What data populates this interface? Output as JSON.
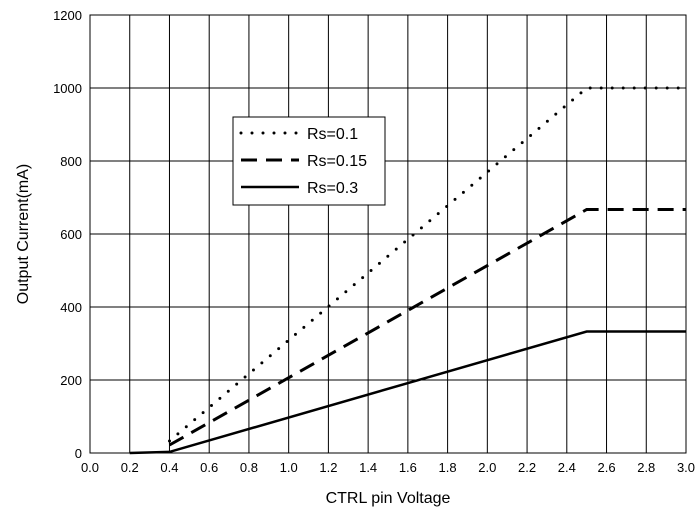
{
  "chart_data": {
    "type": "line",
    "title": "",
    "xlabel": "CTRL pin Voltage",
    "ylabel": "Output Current(mA)",
    "xlim": [
      0.0,
      3.0
    ],
    "ylim": [
      0,
      1200
    ],
    "x_ticks": [
      "0.0",
      "0.2",
      "0.4",
      "0.6",
      "0.8",
      "1.0",
      "1.2",
      "1.4",
      "1.6",
      "1.8",
      "2.0",
      "2.2",
      "2.4",
      "2.6",
      "2.8",
      "3.0"
    ],
    "y_ticks": [
      "0",
      "200",
      "400",
      "600",
      "800",
      "1000",
      "1200"
    ],
    "grid": true,
    "legend_position": "upper-left-center",
    "series": [
      {
        "name": "Rs=0.1",
        "style": "dotted",
        "color": "#000000",
        "x": [
          0.4,
          2.5,
          3.0
        ],
        "y": [
          33,
          1000,
          1000
        ]
      },
      {
        "name": "Rs=0.15",
        "style": "dashed",
        "color": "#000000",
        "x": [
          0.4,
          2.5,
          3.0
        ],
        "y": [
          22,
          667,
          667
        ]
      },
      {
        "name": "Rs=0.3",
        "style": "solid",
        "color": "#000000",
        "x": [
          0.2,
          0.4,
          2.5,
          3.0
        ],
        "y": [
          0,
          3,
          333,
          333
        ]
      }
    ]
  }
}
